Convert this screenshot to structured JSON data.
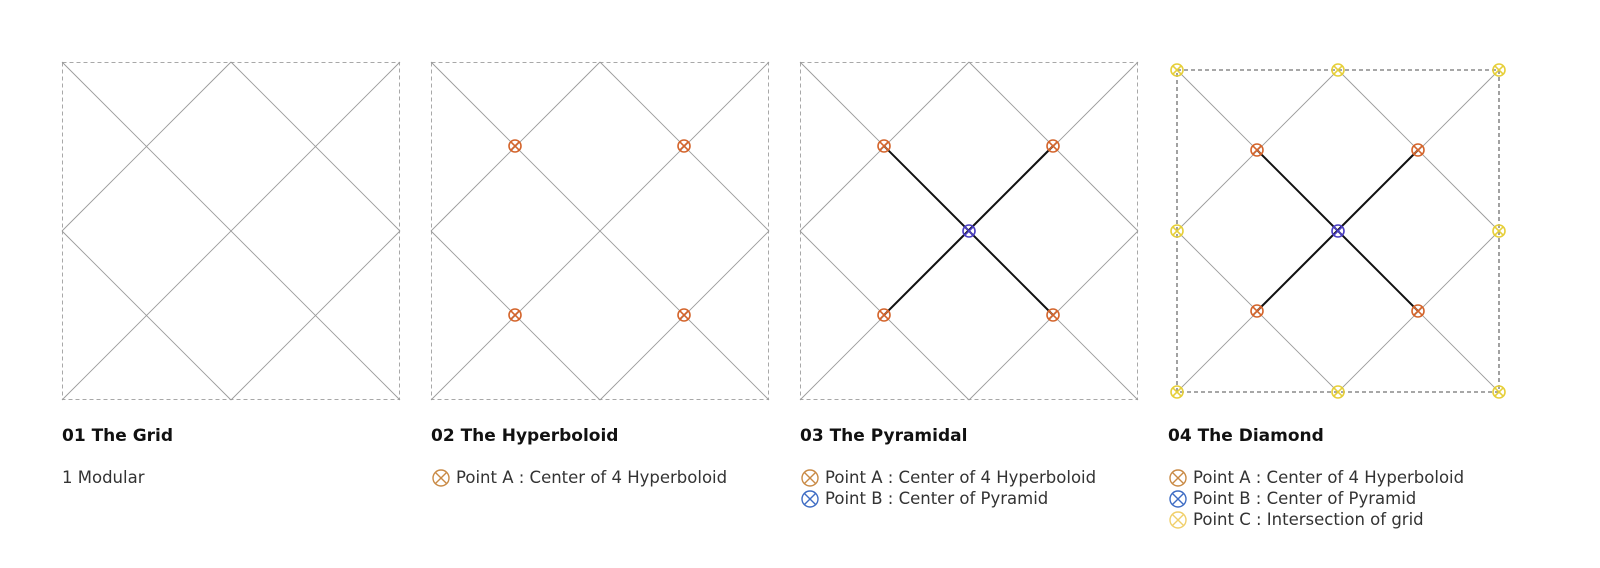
{
  "colors": {
    "point_a": "#d4652c",
    "point_b": "#4b3fc4",
    "point_c": "#e6cf3a",
    "legend_a": "#c98a45",
    "legend_b": "#3e6cc4",
    "legend_c": "#f0cf6a"
  },
  "panels": [
    {
      "title": "01 The Grid",
      "legend": [
        {
          "text": "1 Modular",
          "marker": ""
        }
      ]
    },
    {
      "title": "02 The Hyperboloid",
      "legend": [
        {
          "text": "Point A : Center of 4 Hyperboloid",
          "marker": "a"
        }
      ]
    },
    {
      "title": "03 The Pyramidal",
      "legend": [
        {
          "text": "Point A : Center of 4 Hyperboloid",
          "marker": "a"
        },
        {
          "text": "Point B : Center of Pyramid",
          "marker": "b"
        }
      ]
    },
    {
      "title": "04 The Diamond",
      "legend": [
        {
          "text": "Point A : Center of 4 Hyperboloid",
          "marker": "a"
        },
        {
          "text": "Point B : Center of Pyramid",
          "marker": "b"
        },
        {
          "text": "Point C : Intersection of grid",
          "marker": "c"
        }
      ]
    }
  ],
  "icons": {
    "point_marker": "circled-x-icon"
  }
}
